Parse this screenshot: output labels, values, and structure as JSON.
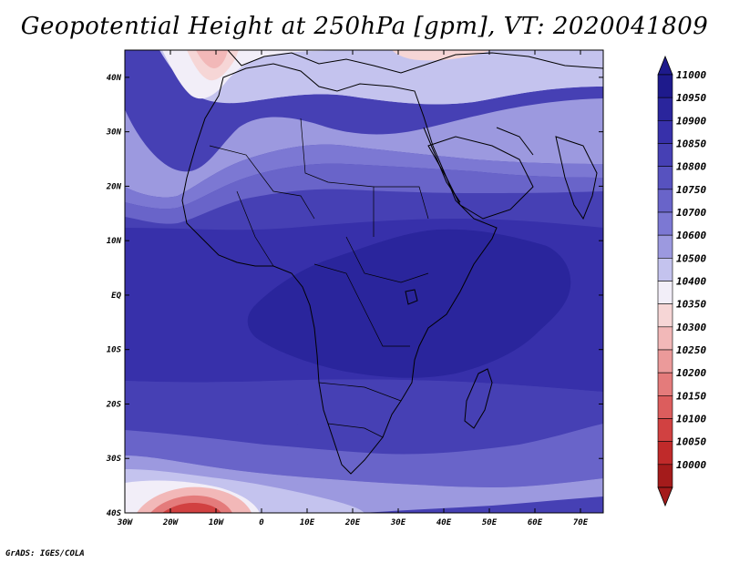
{
  "title": "Geopotential Height at 250hPa [gpm], VT: 2020041809",
  "credit": "GrADS: IGES/COLA",
  "map": {
    "variable": "Geopotential Height",
    "level": "250hPa",
    "units": "gpm",
    "valid_time": "2020041809",
    "lat_range": [
      -40,
      45
    ],
    "lon_range": [
      -30,
      75
    ],
    "lat_ticks": [
      "40N",
      "30N",
      "20N",
      "10N",
      "EQ",
      "10S",
      "20S",
      "30S",
      "40S"
    ],
    "lon_ticks": [
      "30W",
      "20W",
      "10W",
      "0",
      "10E",
      "20E",
      "30E",
      "40E",
      "50E",
      "60E",
      "70E"
    ]
  },
  "colorbar": {
    "levels": [
      "11000",
      "10950",
      "10900",
      "10850",
      "10800",
      "10750",
      "10700",
      "10600",
      "10500",
      "10400",
      "10350",
      "10300",
      "10250",
      "10200",
      "10150",
      "10100",
      "10050",
      "10000"
    ],
    "colors": [
      "#1e1a8c",
      "#2a259c",
      "#3730aa",
      "#4640b4",
      "#5752bf",
      "#6964c9",
      "#7c78d3",
      "#9c99df",
      "#c4c3ee",
      "#f2eef8",
      "#f6d6d6",
      "#f2b8b8",
      "#eb9a9a",
      "#e47b7b",
      "#dc5d5d",
      "#d14141",
      "#c02a2a",
      "#a41b1b"
    ],
    "extend_top_color": "#1e1a8c",
    "extend_bottom_color": "#a41b1b"
  }
}
